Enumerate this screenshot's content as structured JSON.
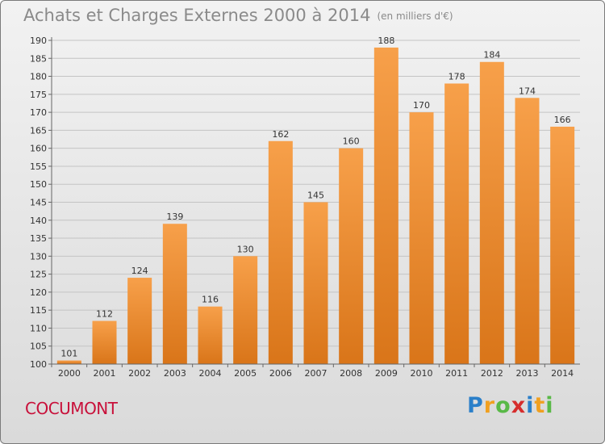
{
  "header": {
    "title": "Achats et Charges Externes 2000 à 2014",
    "unit": "(en milliers d'€)"
  },
  "commune": "COCUMONT",
  "logo": {
    "letters": [
      "P",
      "r",
      "o",
      "x",
      "i",
      "t",
      "i"
    ],
    "colors": [
      "#2a7fc9",
      "#f0a020",
      "#59b947",
      "#d62d2d",
      "#2a7fc9",
      "#f0a020",
      "#59b947"
    ]
  },
  "chart_data": {
    "type": "bar",
    "title": "Achats et Charges Externes 2000 à 2014",
    "categories": [
      "2000",
      "2001",
      "2002",
      "2003",
      "2004",
      "2005",
      "2006",
      "2007",
      "2008",
      "2009",
      "2010",
      "2011",
      "2012",
      "2013",
      "2014"
    ],
    "values": [
      101,
      112,
      124,
      139,
      116,
      130,
      162,
      145,
      160,
      188,
      170,
      178,
      184,
      174,
      166
    ],
    "ylim": [
      100,
      190
    ],
    "yticks": [
      100,
      105,
      110,
      115,
      120,
      125,
      130,
      135,
      140,
      145,
      150,
      155,
      160,
      165,
      170,
      175,
      180,
      185,
      190
    ],
    "grid": true,
    "bar_color_top": "#f7a04a",
    "bar_color_bottom": "#d97519"
  }
}
